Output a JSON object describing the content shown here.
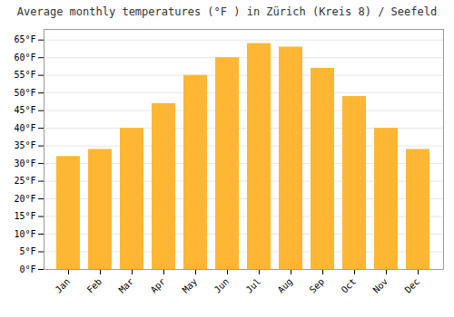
{
  "chart_data": {
    "type": "bar",
    "title": "Average monthly temperatures (°F ) in Zürich (Kreis 8) / Seefeld",
    "categories": [
      "Jan",
      "Feb",
      "Mar",
      "Apr",
      "May",
      "Jun",
      "Jul",
      "Aug",
      "Sep",
      "Oct",
      "Nov",
      "Dec"
    ],
    "values": [
      32,
      34,
      40,
      47,
      55,
      60,
      64,
      63,
      57,
      49,
      40,
      34
    ],
    "color": "#FFB733",
    "ylim": [
      0,
      68
    ],
    "yticks": [
      {
        "value": 0,
        "label": "0°F"
      },
      {
        "value": 5,
        "label": "5°F"
      },
      {
        "value": 10,
        "label": "10°F"
      },
      {
        "value": 15,
        "label": "15°F"
      },
      {
        "value": 20,
        "label": "20°F"
      },
      {
        "value": 25,
        "label": "25°F"
      },
      {
        "value": 30,
        "label": "30°F"
      },
      {
        "value": 35,
        "label": "35°F"
      },
      {
        "value": 40,
        "label": "40°F"
      },
      {
        "value": 45,
        "label": "45°F"
      },
      {
        "value": 50,
        "label": "50°F"
      },
      {
        "value": 55,
        "label": "55°F"
      },
      {
        "value": 60,
        "label": "60°F"
      },
      {
        "value": 65,
        "label": "65°F"
      }
    ],
    "grid": true
  }
}
